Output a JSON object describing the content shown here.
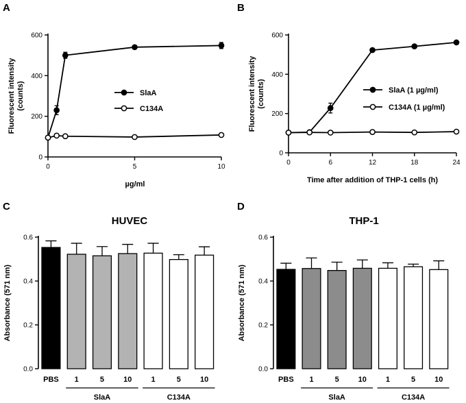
{
  "panels": {
    "A": {
      "letter": "A"
    },
    "B": {
      "letter": "B"
    },
    "C": {
      "letter": "C"
    },
    "D": {
      "letter": "D"
    }
  },
  "chart_data": [
    {
      "id": "A",
      "type": "line",
      "title": "",
      "xlabel": "µg/ml",
      "ylabel": "Fluorescent intensity\n(counts)",
      "xlim": [
        0,
        10
      ],
      "ylim": [
        0,
        600
      ],
      "xticks": [
        0,
        5,
        10
      ],
      "yticks": [
        0,
        200,
        400,
        600
      ],
      "legend_position": "center-right",
      "series": [
        {
          "name": "SlaA",
          "marker": "filled-circle",
          "x": [
            0,
            0.5,
            1,
            5,
            10
          ],
          "y": [
            95,
            230,
            500,
            540,
            548
          ],
          "err": [
            0,
            22,
            15,
            5,
            15
          ]
        },
        {
          "name": "C134A",
          "marker": "open-circle",
          "x": [
            0,
            0.5,
            1,
            5,
            10
          ],
          "y": [
            95,
            105,
            102,
            98,
            108
          ],
          "err": [
            0,
            3,
            3,
            4,
            5
          ]
        }
      ]
    },
    {
      "id": "B",
      "type": "line",
      "title": "",
      "xlabel": "Time after addition of THP-1 cells (h)",
      "ylabel": "Fluorescent intensity\n(counts)",
      "xlim": [
        0,
        24
      ],
      "ylim": [
        0,
        600
      ],
      "xticks": [
        0,
        6,
        12,
        18,
        24
      ],
      "yticks": [
        0,
        200,
        400,
        600
      ],
      "legend_position": "center-right",
      "series": [
        {
          "name": "SlaA (1 µg/ml)",
          "marker": "filled-circle",
          "x": [
            0,
            3,
            6,
            12,
            18,
            24
          ],
          "y": [
            103,
            105,
            228,
            523,
            542,
            562
          ],
          "err": [
            0,
            0,
            25,
            5,
            5,
            5
          ]
        },
        {
          "name": "C134A (1 µg/ml)",
          "marker": "open-circle",
          "x": [
            0,
            3,
            6,
            12,
            18,
            24
          ],
          "y": [
            103,
            104,
            103,
            106,
            104,
            108
          ],
          "err": [
            0,
            0,
            3,
            3,
            3,
            3
          ]
        }
      ]
    },
    {
      "id": "C",
      "type": "bar",
      "title": "HUVEC",
      "xlabel": "",
      "ylabel": "Absorbance (571 nm)",
      "ylim": [
        0,
        0.6
      ],
      "yticks": [
        0.0,
        0.2,
        0.4,
        0.6
      ],
      "ytick_labels": [
        "0.0",
        "0.2",
        "0.4",
        "0.6"
      ],
      "categories": [
        "PBS",
        "1",
        "5",
        "10",
        "1",
        "5",
        "10"
      ],
      "values": [
        0.553,
        0.522,
        0.515,
        0.525,
        0.527,
        0.498,
        0.518
      ],
      "errors": [
        0.03,
        0.05,
        0.042,
        0.042,
        0.045,
        0.022,
        0.038
      ],
      "fills": [
        "#000000",
        "#b3b3b3",
        "#b3b3b3",
        "#b3b3b3",
        "#ffffff",
        "#ffffff",
        "#ffffff"
      ],
      "groups": [
        {
          "label": "SlaA",
          "from": 1,
          "to": 3
        },
        {
          "label": "C134A",
          "from": 4,
          "to": 6
        }
      ]
    },
    {
      "id": "D",
      "type": "bar",
      "title": "THP-1",
      "xlabel": "",
      "ylabel": "Absorbance (571 nm)",
      "ylim": [
        0,
        0.6
      ],
      "yticks": [
        0.0,
        0.2,
        0.4,
        0.6
      ],
      "ytick_labels": [
        "0.0",
        "0.2",
        "0.4",
        "0.6"
      ],
      "categories": [
        "PBS",
        "1",
        "5",
        "10",
        "1",
        "5",
        "10"
      ],
      "values": [
        0.453,
        0.457,
        0.448,
        0.458,
        0.458,
        0.465,
        0.452
      ],
      "errors": [
        0.028,
        0.048,
        0.038,
        0.038,
        0.025,
        0.012,
        0.04
      ],
      "fills": [
        "#000000",
        "#8c8c8c",
        "#8c8c8c",
        "#8c8c8c",
        "#ffffff",
        "#ffffff",
        "#ffffff"
      ],
      "groups": [
        {
          "label": "SlaA",
          "from": 1,
          "to": 3
        },
        {
          "label": "C134A",
          "from": 4,
          "to": 6
        }
      ]
    }
  ]
}
